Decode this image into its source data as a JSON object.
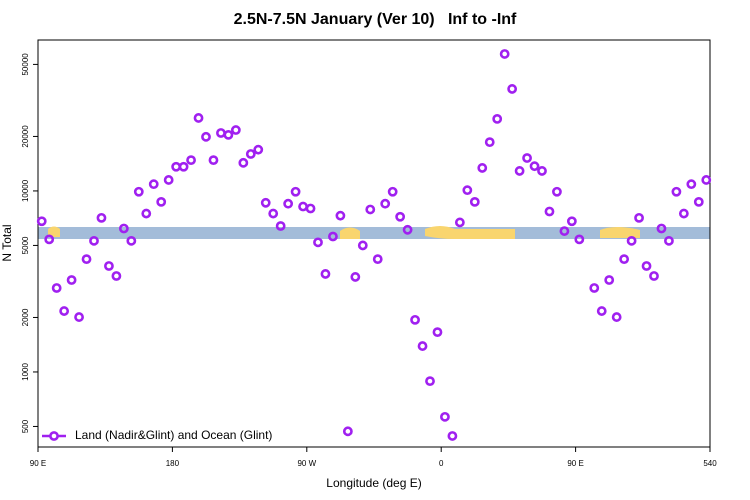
{
  "chart_data": {
    "type": "scatter",
    "title": "2.5N-7.5N January (Ver 10)   Inf to -Inf",
    "x_label": "Longitude (deg E)",
    "y_label": "N Total",
    "y_scale": "log",
    "legend": "bottom-left",
    "xlim": [
      90,
      540
    ],
    "xticks": [
      {
        "value": 90,
        "label": "90 E"
      },
      180,
      {
        "value": 270,
        "label": "90 W"
      },
      {
        "value": 360,
        "label": "0"
      },
      {
        "value": 450,
        "label": "90 E"
      },
      540
    ],
    "ylim": [
      385,
      68200
    ],
    "yticks": [
      500,
      1000,
      2000,
      5000,
      10000,
      20000,
      50000
    ],
    "series": [
      {
        "name": "Land (Nadir&Glint) and Ocean (Glint)",
        "color": "#a020f0",
        "x": [
          92.5,
          97.5,
          102.5,
          107.5,
          112.5,
          117.5,
          122.5,
          127.5,
          132.5,
          137.5,
          142.5,
          147.5,
          152.5,
          157.5,
          162.5,
          167.5,
          172.5,
          177.5,
          182.5,
          187.5,
          192.5,
          197.5,
          202.5,
          207.5,
          212.5,
          217.5,
          222.5,
          227.5,
          232.5,
          237.5,
          242.5,
          247.5,
          252.5,
          257.5,
          262.5,
          267.5,
          272.5,
          277.5,
          282.5,
          287.5,
          292.5,
          297.5,
          302.5,
          307.5,
          312.5,
          317.5,
          322.5,
          327.5,
          332.5,
          337.5,
          342.5,
          347.5,
          352.5,
          357.5,
          362.5,
          367.5,
          372.5,
          377.5,
          382.5,
          387.5,
          392.5,
          397.5,
          402.5,
          407.5,
          412.5,
          417.5,
          422.5,
          427.5,
          432.5,
          437.5,
          442.5,
          447.5,
          452.5,
          462.5,
          467.5,
          472.5,
          477.5,
          482.5,
          487.5,
          492.5,
          497.5,
          502.5,
          507.5,
          512.5,
          517.5,
          522.5,
          527.5,
          532.5,
          537.5
        ],
        "values": [
          6800,
          5400,
          2910,
          2170,
          3220,
          2010,
          4200,
          5300,
          7100,
          3850,
          3390,
          6200,
          5300,
          9900,
          7500,
          10900,
          8700,
          11500,
          13600,
          13600,
          14800,
          25300,
          19900,
          14800,
          20900,
          20400,
          21700,
          14300,
          16000,
          16900,
          8600,
          7500,
          6400,
          8500,
          9900,
          8200,
          8000,
          5200,
          3480,
          5600,
          7300,
          470,
          3350,
          5000,
          7900,
          4200,
          8500,
          9900,
          7200,
          6100,
          1940,
          1390,
          890,
          1660,
          565,
          443,
          6700,
          10100,
          8700,
          13400,
          18600,
          25000,
          57100,
          36600,
          12900,
          15200,
          13700,
          12900,
          7700,
          9900,
          6000,
          6800,
          5400,
          2910,
          2170,
          3220,
          2010,
          4200,
          5300,
          7100,
          3850,
          3390,
          6200,
          5300,
          9900,
          7500,
          10900,
          8700,
          11500
        ]
      }
    ]
  }
}
